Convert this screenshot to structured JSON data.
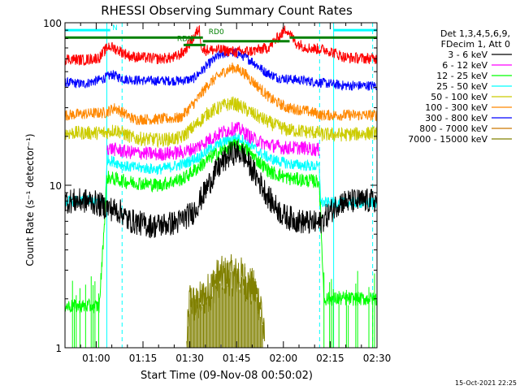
{
  "chart_data": {
    "type": "line",
    "title": "RHESSI Observing Summary Count Rates",
    "xlabel": "Start Time (09-Nov-08 00:50:02)",
    "ylabel": "Count Rate (s⁻¹ detector⁻¹)",
    "x_unit": "minutes",
    "xlim": [
      50,
      150
    ],
    "ylim": [
      1,
      100
    ],
    "yscale": "log",
    "x_ticks": [
      {
        "value": 60,
        "label": "01:00"
      },
      {
        "value": 75,
        "label": "01:15"
      },
      {
        "value": 90,
        "label": "01:30"
      },
      {
        "value": 105,
        "label": "01:45"
      },
      {
        "value": 120,
        "label": "02:00"
      },
      {
        "value": 135,
        "label": "02:15"
      },
      {
        "value": 150,
        "label": "02:30"
      }
    ],
    "y_ticks": [
      {
        "value": 1,
        "label": "1"
      },
      {
        "value": 10,
        "label": "10"
      },
      {
        "value": 100,
        "label": "100"
      }
    ],
    "legend": {
      "placement": "right",
      "header": [
        "Det 1,3,4,5,6,9,",
        "FDecim 1, Att 0"
      ]
    },
    "series": [
      {
        "name": "3 - 6 keV",
        "color": "#000000",
        "points": [
          [
            50,
            8
          ],
          [
            58,
            8
          ],
          [
            63.5,
            7.3
          ],
          [
            68.3,
            6.8
          ],
          [
            70,
            6.1
          ],
          [
            78,
            5.6
          ],
          [
            86,
            5.9
          ],
          [
            91,
            6.8
          ],
          [
            94,
            8.5
          ],
          [
            97,
            11
          ],
          [
            100,
            13.5
          ],
          [
            103,
            15.5
          ],
          [
            105,
            16
          ],
          [
            107,
            15.5
          ],
          [
            110,
            12.5
          ],
          [
            113,
            10
          ],
          [
            116,
            8
          ],
          [
            120,
            6.5
          ],
          [
            125,
            6
          ],
          [
            131.5,
            5.8
          ],
          [
            138,
            7.9
          ],
          [
            145,
            8
          ],
          [
            150,
            8
          ]
        ]
      },
      {
        "name": "6 - 12 keV",
        "color": "#ff00ff",
        "points": [
          [
            63.5,
            17
          ],
          [
            70,
            16
          ],
          [
            80,
            15.5
          ],
          [
            88,
            16
          ],
          [
            92,
            17
          ],
          [
            96,
            19
          ],
          [
            100,
            21
          ],
          [
            103,
            22
          ],
          [
            105,
            22.5
          ],
          [
            107,
            21.5
          ],
          [
            110,
            19.5
          ],
          [
            114,
            18
          ],
          [
            120,
            17
          ],
          [
            126,
            17
          ],
          [
            131.5,
            16.5
          ]
        ]
      },
      {
        "name": "12 - 25 keV",
        "color": "#00ff00",
        "points": [
          [
            50,
            1.8
          ],
          [
            61,
            1.8
          ],
          [
            63.5,
            11.2
          ],
          [
            70,
            10.5
          ],
          [
            80,
            10
          ],
          [
            88,
            11
          ],
          [
            93,
            13
          ],
          [
            97,
            15
          ],
          [
            101,
            16.5
          ],
          [
            104,
            17.5
          ],
          [
            106,
            17.5
          ],
          [
            109,
            16
          ],
          [
            112,
            14
          ],
          [
            116,
            12
          ],
          [
            122,
            11
          ],
          [
            131.5,
            10.5
          ],
          [
            133,
            2
          ],
          [
            140,
            2
          ],
          [
            150,
            2
          ]
        ]
      },
      {
        "name": "25 - 50 keV",
        "color": "#00ffff",
        "points": [
          [
            50,
            8
          ],
          [
            63,
            8
          ],
          [
            63.5,
            14.5
          ],
          [
            70,
            13
          ],
          [
            80,
            12.5
          ],
          [
            88,
            13.5
          ],
          [
            93,
            15
          ],
          [
            97,
            17
          ],
          [
            101,
            18.5
          ],
          [
            104,
            19.5
          ],
          [
            106,
            19.5
          ],
          [
            109,
            18
          ],
          [
            112,
            16
          ],
          [
            116,
            14.5
          ],
          [
            122,
            13.5
          ],
          [
            131.5,
            13
          ],
          [
            132,
            7.8
          ],
          [
            140,
            7.8
          ],
          [
            150,
            7.8
          ]
        ]
      },
      {
        "name": "50 - 100 keV",
        "color": "#cccc00",
        "points": [
          [
            50,
            21
          ],
          [
            63,
            21
          ],
          [
            66,
            22
          ],
          [
            72,
            19.5
          ],
          [
            80,
            19
          ],
          [
            87,
            19.5
          ],
          [
            92,
            23.5
          ],
          [
            96,
            28
          ],
          [
            101,
            31
          ],
          [
            104,
            32
          ],
          [
            107,
            30
          ],
          [
            111,
            27
          ],
          [
            116,
            24
          ],
          [
            121,
            22
          ],
          [
            126,
            21.5
          ],
          [
            131.5,
            21
          ],
          [
            132,
            20.5
          ],
          [
            140,
            20.5
          ],
          [
            150,
            21
          ]
        ]
      },
      {
        "name": "100 - 300 keV",
        "color": "#ff8800",
        "points": [
          [
            50,
            27
          ],
          [
            63,
            28
          ],
          [
            66,
            30
          ],
          [
            72,
            25.5
          ],
          [
            80,
            25.5
          ],
          [
            87,
            26
          ],
          [
            92,
            33
          ],
          [
            96,
            42
          ],
          [
            101,
            50
          ],
          [
            104,
            53
          ],
          [
            107,
            50
          ],
          [
            111,
            42
          ],
          [
            116,
            34
          ],
          [
            121,
            30
          ],
          [
            126,
            29
          ],
          [
            131.5,
            27.5
          ],
          [
            132,
            27
          ],
          [
            140,
            27
          ],
          [
            150,
            27
          ]
        ]
      },
      {
        "name": "300 - 800 keV",
        "color": "#0000ff",
        "points": [
          [
            50,
            43
          ],
          [
            56,
            42
          ],
          [
            62,
            45
          ],
          [
            65,
            48
          ],
          [
            69,
            45
          ],
          [
            76,
            44
          ],
          [
            82,
            44
          ],
          [
            87,
            44
          ],
          [
            91,
            45
          ],
          [
            94,
            51
          ],
          [
            97,
            58
          ],
          [
            100,
            64
          ],
          [
            103,
            66
          ],
          [
            106,
            64
          ],
          [
            110,
            58
          ],
          [
            114,
            50
          ],
          [
            118,
            46
          ],
          [
            122,
            45
          ],
          [
            127,
            44
          ],
          [
            131.5,
            43
          ],
          [
            135,
            42
          ],
          [
            140,
            41
          ],
          [
            150,
            41
          ]
        ]
      },
      {
        "name": "800 - 7000 keV",
        "color": "#cc7700",
        "points": []
      },
      {
        "name": "7000 - 15000 keV",
        "color": "#808000",
        "points": [
          [
            89,
            1
          ],
          [
            90,
            2
          ],
          [
            92,
            1.8
          ],
          [
            96,
            2.2
          ],
          [
            99,
            2.7
          ],
          [
            103,
            2.8
          ],
          [
            107,
            2.7
          ],
          [
            111,
            2.2
          ],
          [
            113,
            1.8
          ],
          [
            114,
            1
          ]
        ]
      }
    ],
    "extra_red_trace": {
      "color": "#ff0000",
      "points": [
        [
          50,
          60
        ],
        [
          56,
          59
        ],
        [
          61,
          61
        ],
        [
          64,
          72
        ],
        [
          67,
          68
        ],
        [
          71,
          62
        ],
        [
          80,
          60
        ],
        [
          85,
          61
        ],
        [
          88,
          66
        ],
        [
          91,
          80
        ],
        [
          93,
          92
        ],
        [
          94,
          68
        ],
        [
          100,
          68
        ],
        [
          105,
          66
        ],
        [
          110,
          67
        ],
        [
          115,
          70
        ],
        [
          118,
          80
        ],
        [
          121,
          92
        ],
        [
          124,
          75
        ],
        [
          128,
          70
        ],
        [
          134,
          68
        ],
        [
          140,
          61
        ],
        [
          150,
          60
        ]
      ]
    },
    "state_bars": [
      {
        "label": "N",
        "color": "#00ffff",
        "intervals": [
          [
            50,
            64.5
          ],
          [
            136,
            150
          ]
        ],
        "level": 90
      },
      {
        "label": "RD0",
        "color": "#008000",
        "intervals": [
          [
            50,
            94.2
          ],
          [
            122,
            150
          ]
        ],
        "level": 81
      },
      {
        "label": "RD0",
        "color": "#008000",
        "intervals": [
          [
            94.2,
            122
          ]
        ],
        "level": 77
      },
      {
        "label": "RDN",
        "color": "#008000",
        "intervals": [
          [
            88,
            95
          ]
        ],
        "level": 73
      }
    ],
    "annotations": [
      {
        "text": "N",
        "x": 66,
        "y": 90,
        "color": "#00ffff"
      },
      {
        "text": "RD0",
        "x": 98.5,
        "y": 85,
        "color": "#008000"
      },
      {
        "text": "RDN",
        "x": 88.5,
        "y": 77,
        "color": "#008000"
      }
    ],
    "vertical_lines": [
      {
        "x": 63.4,
        "color": "#00ffff",
        "style": "solid"
      },
      {
        "x": 68.3,
        "color": "#00ffff",
        "style": "dashed"
      },
      {
        "x": 131.6,
        "color": "#00ffff",
        "style": "dashed"
      },
      {
        "x": 136.1,
        "color": "#00ffff",
        "style": "solid"
      },
      {
        "x": 148.6,
        "color": "#00ffff",
        "style": "dashed"
      }
    ],
    "grid": false,
    "footer": "15-Oct-2021 22:25"
  }
}
